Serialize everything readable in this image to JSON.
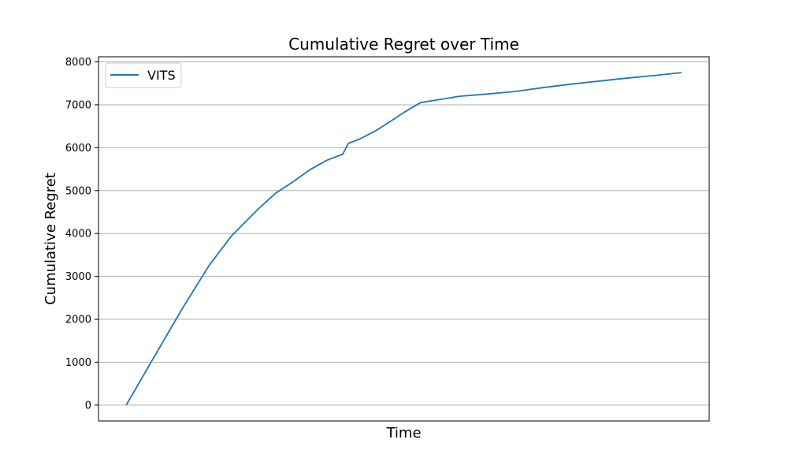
{
  "chart_data": {
    "type": "line",
    "title": "Cumulative Regret over Time",
    "xlabel": "Time",
    "ylabel": "Cumulative Regret",
    "xlim": [
      -0.05,
      1.05
    ],
    "ylim": [
      -370,
      8120
    ],
    "yticks": [
      0,
      1000,
      2000,
      3000,
      4000,
      5000,
      6000,
      7000,
      8000
    ],
    "xticks_shown": false,
    "grid": "y",
    "legend_position": "upper-left",
    "series": [
      {
        "name": "VITS",
        "color": "#1f77b4",
        "x": [
          0.0,
          0.05,
          0.1,
          0.15,
          0.19,
          0.24,
          0.27,
          0.3,
          0.33,
          0.36,
          0.39,
          0.4,
          0.42,
          0.45,
          0.48,
          0.5,
          0.53,
          0.6,
          0.65,
          0.7,
          0.75,
          0.8,
          0.85,
          0.9,
          0.95,
          1.0
        ],
        "values": [
          0,
          1120,
          2230,
          3270,
          3950,
          4600,
          4950,
          5200,
          5480,
          5700,
          5850,
          6100,
          6200,
          6400,
          6650,
          6820,
          7050,
          7200,
          7250,
          7310,
          7400,
          7480,
          7550,
          7620,
          7680,
          7750
        ]
      }
    ]
  }
}
